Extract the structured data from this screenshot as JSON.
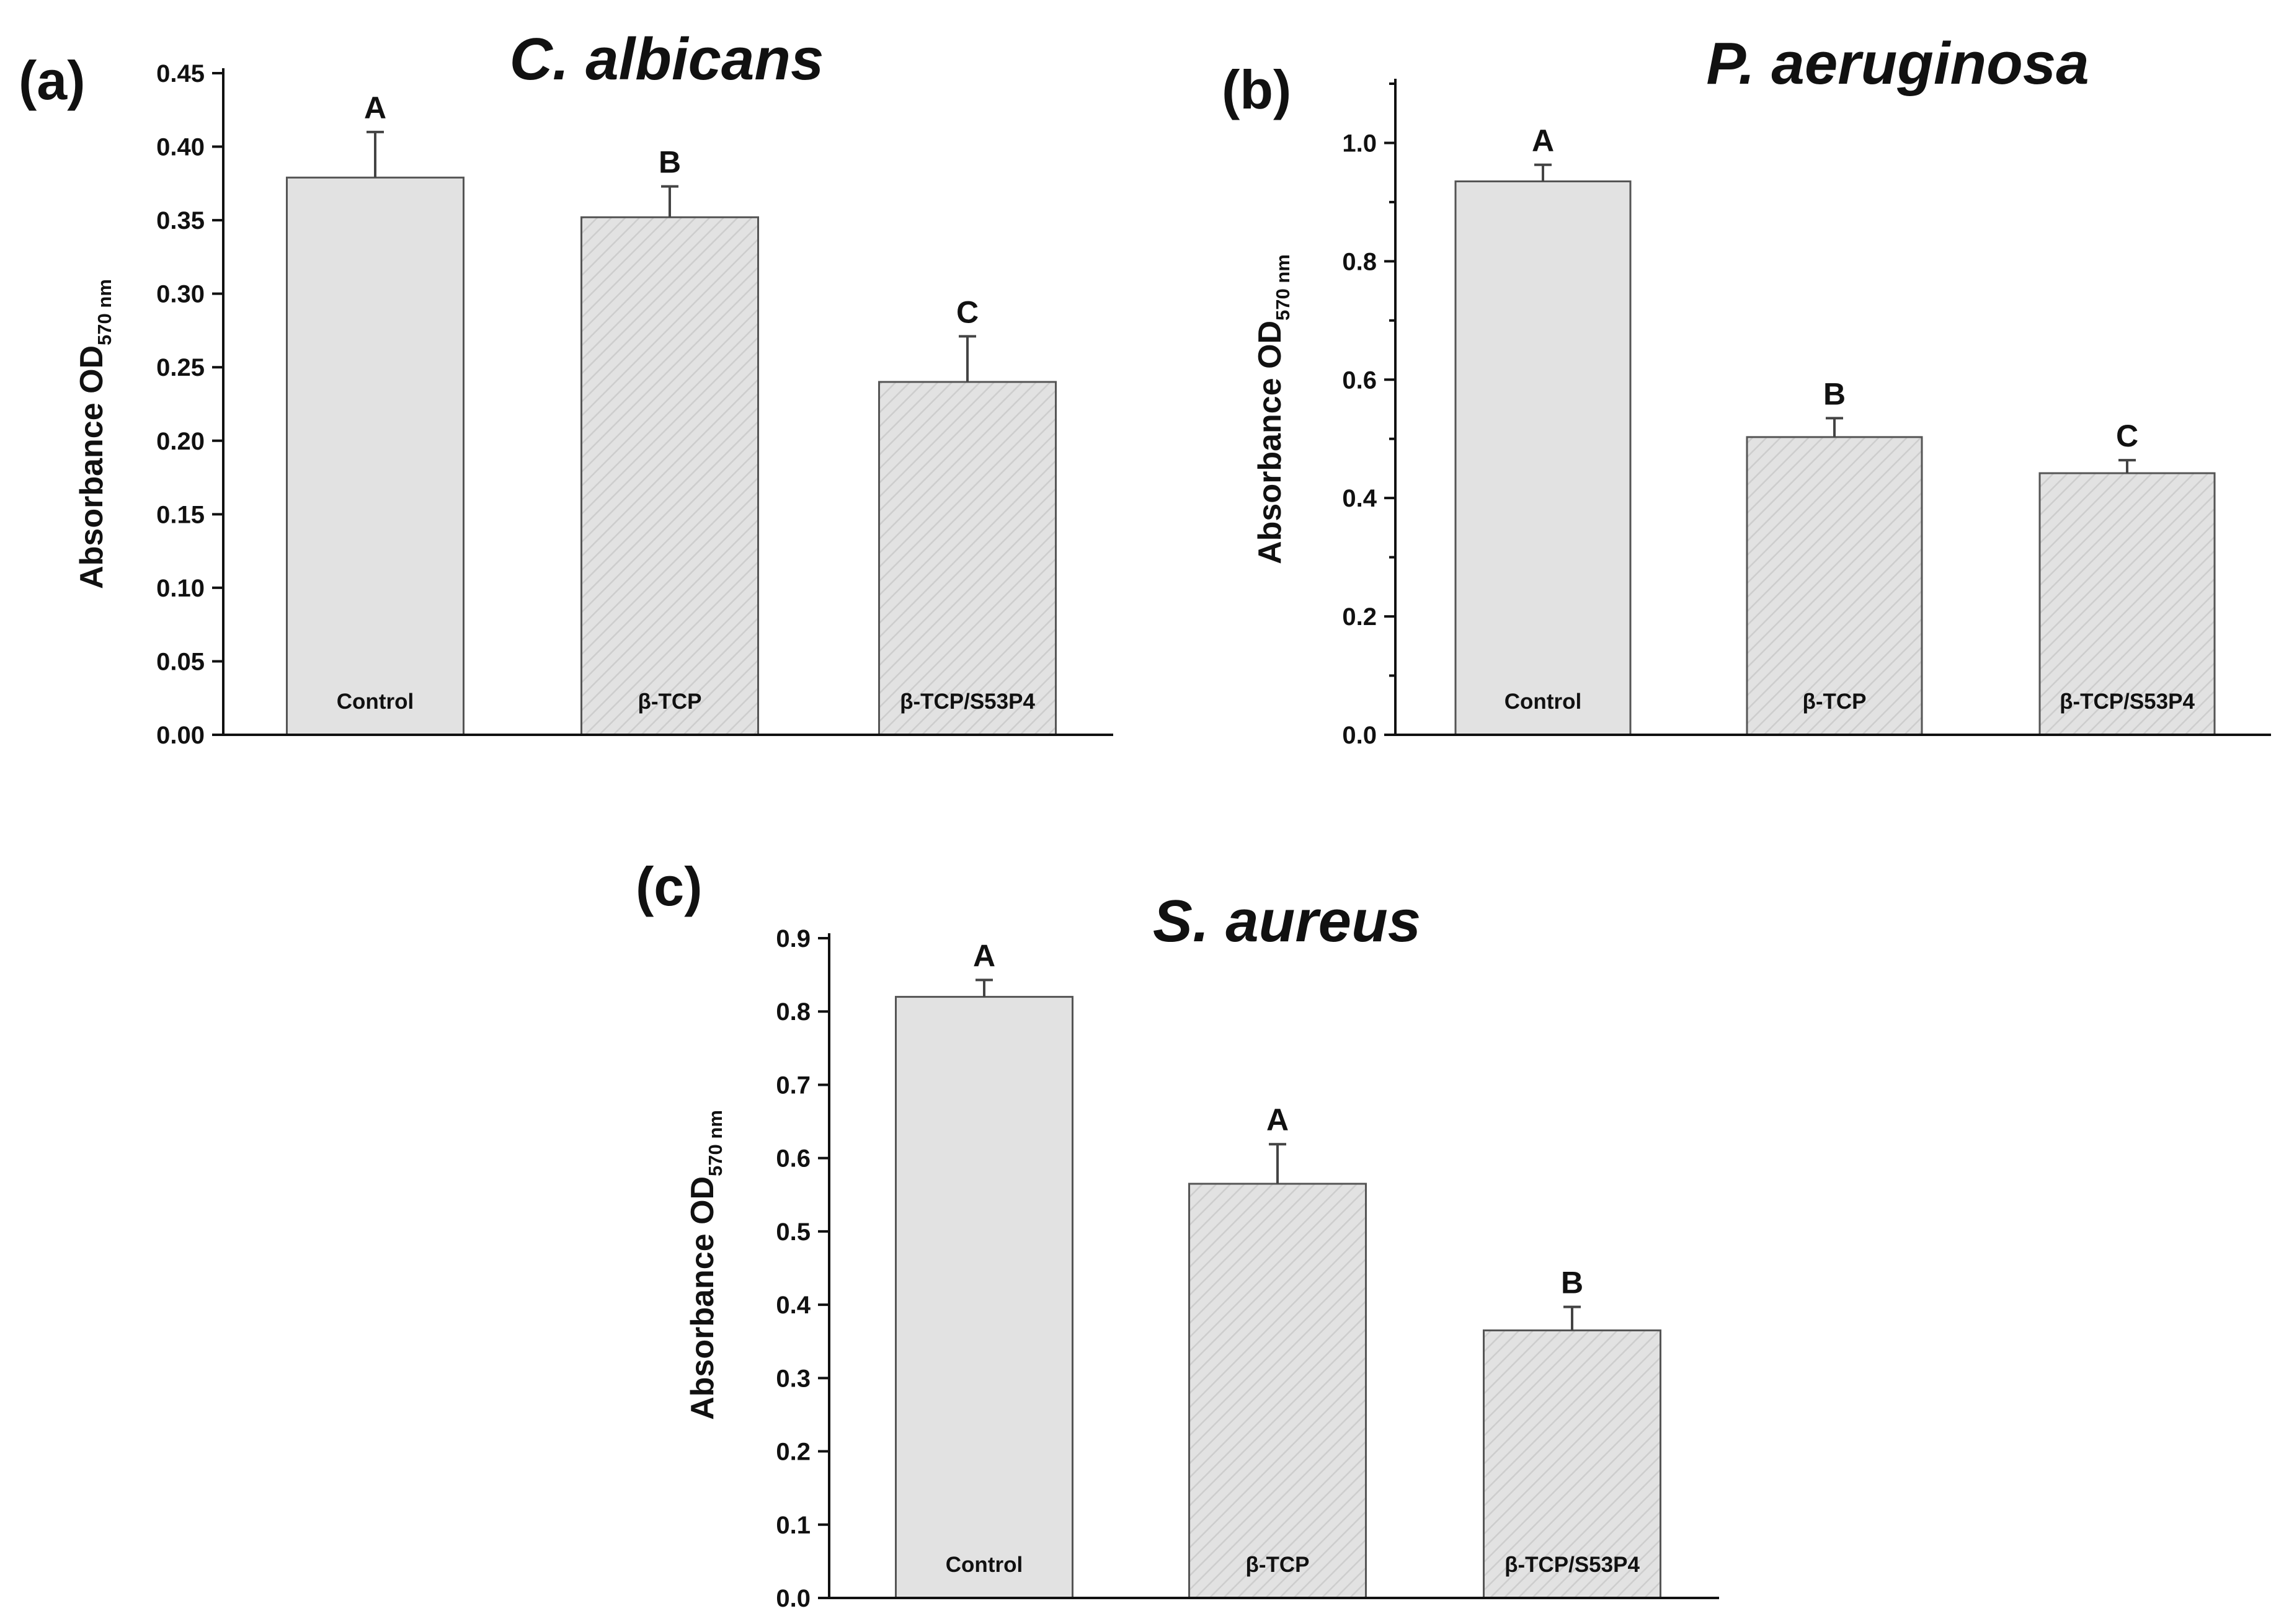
{
  "colors": {
    "bar_fill": "#e2e2e2",
    "hatch": "#cdcdcd",
    "axis": "#111111"
  },
  "chart_data": [
    {
      "type": "bar",
      "panel": "(a)",
      "title": "C. albicans",
      "ylabel_main": "Absorbance OD",
      "ylabel_sub": "570 nm",
      "ylim": [
        0,
        0.45
      ],
      "yticks": [
        "0.00",
        "0.05",
        "0.10",
        "0.15",
        "0.20",
        "0.25",
        "0.30",
        "0.35",
        "0.40",
        "0.45"
      ],
      "categories": [
        "Control",
        "β-TCP",
        "β-TCP/S53P4"
      ],
      "values": [
        0.379,
        0.352,
        0.24
      ],
      "errors": [
        0.031,
        0.021,
        0.031
      ],
      "significance": [
        "A",
        "B",
        "C"
      ],
      "hatched": [
        false,
        true,
        true
      ]
    },
    {
      "type": "bar",
      "panel": "(b)",
      "title": "P. aeruginosa",
      "ylabel_main": "Absorbance OD",
      "ylabel_sub": "570 nm",
      "ylim": [
        0,
        1.1
      ],
      "yticks": [
        "0.0",
        "0.2",
        "0.4",
        "0.6",
        "0.8",
        "1.0"
      ],
      "categories": [
        "Control",
        "β-TCP",
        "β-TCP/S53P4"
      ],
      "values": [
        0.935,
        0.503,
        0.442
      ],
      "errors": [
        0.028,
        0.032,
        0.022
      ],
      "significance": [
        "A",
        "B",
        "C"
      ],
      "hatched": [
        false,
        true,
        true
      ]
    },
    {
      "type": "bar",
      "panel": "(c)",
      "title": "S. aureus",
      "ylabel_main": "Absorbance OD",
      "ylabel_sub": "570 nm",
      "ylim": [
        0,
        0.9
      ],
      "yticks": [
        "0.0",
        "0.1",
        "0.2",
        "0.3",
        "0.4",
        "0.5",
        "0.6",
        "0.7",
        "0.8",
        "0.9"
      ],
      "categories": [
        "Control",
        "β-TCP",
        "β-TCP/S53P4"
      ],
      "values": [
        0.82,
        0.565,
        0.365
      ],
      "errors": [
        0.023,
        0.054,
        0.032
      ],
      "significance": [
        "A",
        "A",
        "B"
      ],
      "hatched": [
        false,
        true,
        true
      ]
    }
  ]
}
